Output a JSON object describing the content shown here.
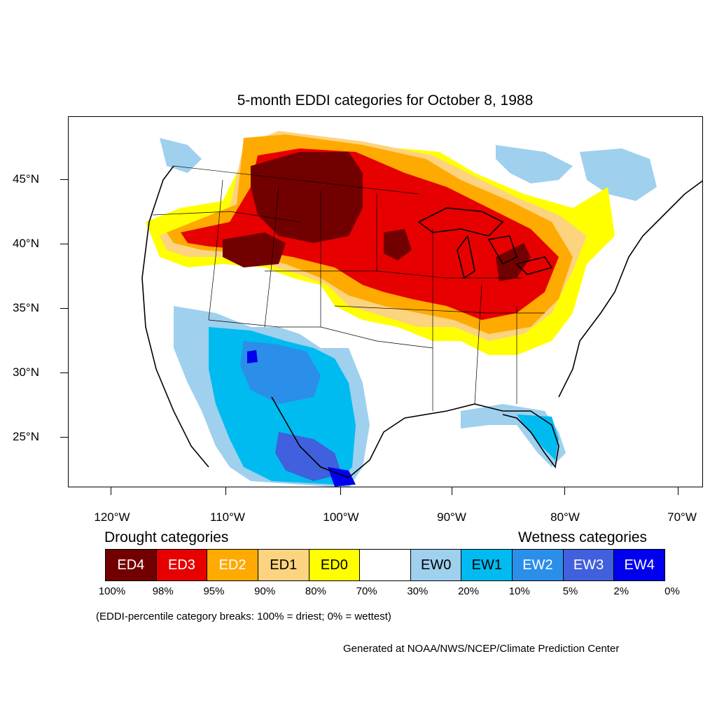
{
  "title": "5-month EDDI categories for October 8, 1988",
  "lat_labels": [
    "45°N",
    "40°N",
    "35°N",
    "30°N",
    "25°N"
  ],
  "lon_labels": [
    "120°W",
    "110°W",
    "100°W",
    "90°W",
    "80°W",
    "70°W"
  ],
  "drought_heading": "Drought categories",
  "wetness_heading": "Wetness categories",
  "legend": [
    {
      "label": "ED4",
      "color": "#730000",
      "text_color": "#ffffff"
    },
    {
      "label": "ED3",
      "color": "#e60000",
      "text_color": "#ffffff"
    },
    {
      "label": "ED2",
      "color": "#ffaa00",
      "text_color": "#ffffff"
    },
    {
      "label": "ED1",
      "color": "#fcd37f",
      "text_color": "#000000"
    },
    {
      "label": "ED0",
      "color": "#ffff00",
      "text_color": "#000000"
    },
    {
      "label": "",
      "color": "#ffffff",
      "text_color": "#000000"
    },
    {
      "label": "EW0",
      "color": "#9fd0ee",
      "text_color": "#000000"
    },
    {
      "label": "EW1",
      "color": "#00bbf0",
      "text_color": "#000000"
    },
    {
      "label": "EW2",
      "color": "#2b8ee8",
      "text_color": "#ffffff"
    },
    {
      "label": "EW3",
      "color": "#4060dd",
      "text_color": "#ffffff"
    },
    {
      "label": "EW4",
      "color": "#0000ee",
      "text_color": "#ffffff"
    }
  ],
  "breaks": [
    "100%",
    "98%",
    "95%",
    "90%",
    "80%",
    "70%",
    "30%",
    "20%",
    "10%",
    "5%",
    "2%",
    "0%"
  ],
  "note": "(EDDI-percentile category breaks: 100% = driest; 0% = wettest)",
  "credit": "Generated at NOAA/NWS/NCEP/Climate Prediction Center"
}
